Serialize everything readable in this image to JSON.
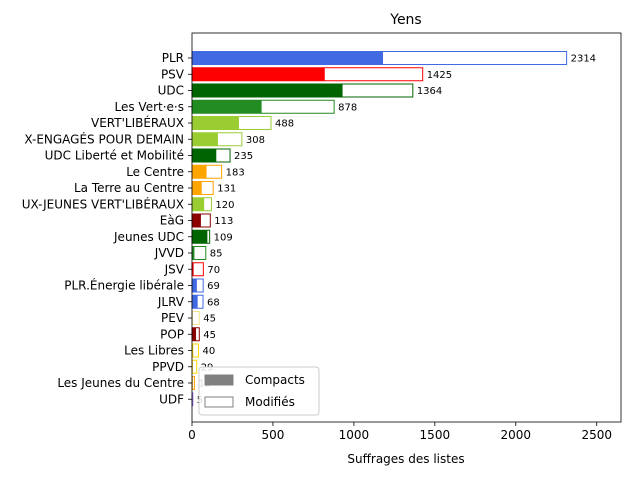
{
  "chart_data": {
    "type": "bar",
    "orientation": "horizontal",
    "title": "Yens",
    "xlabel": "Suffrages des listes",
    "ylabel": "",
    "xlim": [
      0,
      2650
    ],
    "xticks": [
      0,
      500,
      1000,
      1500,
      2000,
      2500
    ],
    "grid": false,
    "legend_position": "lower-left",
    "legend": [
      {
        "label": "Compacts",
        "style": "filled",
        "color": "#808080"
      },
      {
        "label": "Modifiés",
        "style": "outline",
        "color": "#808080"
      }
    ],
    "categories": [
      {
        "name": "PLR",
        "total": 2314,
        "compacts": 1180,
        "color": "#4169e1"
      },
      {
        "name": "PSV",
        "total": 1425,
        "compacts": 820,
        "color": "#ff0000"
      },
      {
        "name": "UDC",
        "total": 1364,
        "compacts": 930,
        "color": "#006400"
      },
      {
        "name": "Les Vert·e·s",
        "total": 878,
        "compacts": 430,
        "color": "#228b22"
      },
      {
        "name": "VERT'LIBÉRAUX",
        "total": 488,
        "compacts": 290,
        "color": "#9acd32"
      },
      {
        "name": "X-ENGAGÉS POUR DEMAIN",
        "total": 308,
        "compacts": 160,
        "color": "#9acd32"
      },
      {
        "name": "UDC Liberté et Mobilité",
        "total": 235,
        "compacts": 150,
        "color": "#006400"
      },
      {
        "name": "Le Centre",
        "total": 183,
        "compacts": 90,
        "color": "#ffa500"
      },
      {
        "name": "La Terre au Centre",
        "total": 131,
        "compacts": 60,
        "color": "#ffa500"
      },
      {
        "name": "UX-JEUNES VERT'LIBÉRAUX",
        "total": 120,
        "compacts": 75,
        "color": "#9acd32"
      },
      {
        "name": "EàG",
        "total": 113,
        "compacts": 55,
        "color": "#8b0000"
      },
      {
        "name": "Jeunes UDC",
        "total": 109,
        "compacts": 95,
        "color": "#006400"
      },
      {
        "name": "JVVD",
        "total": 85,
        "compacts": 15,
        "color": "#228b22"
      },
      {
        "name": "JSV",
        "total": 70,
        "compacts": 10,
        "color": "#ff0000"
      },
      {
        "name": "PLR.Énergie libérale",
        "total": 69,
        "compacts": 30,
        "color": "#4169e1"
      },
      {
        "name": "JLRV",
        "total": 68,
        "compacts": 35,
        "color": "#4169e1"
      },
      {
        "name": "PEV",
        "total": 45,
        "compacts": 5,
        "color": "#f0e68c"
      },
      {
        "name": "POP",
        "total": 45,
        "compacts": 25,
        "color": "#8b0000"
      },
      {
        "name": "Les Libres",
        "total": 40,
        "compacts": 8,
        "color": "#ffd700"
      },
      {
        "name": "PPVD",
        "total": 29,
        "compacts": 5,
        "color": "#ffd700"
      },
      {
        "name": "Les Jeunes du Centre",
        "total": 15,
        "compacts": 5,
        "color": "#ffa500"
      },
      {
        "name": "UDF",
        "total": 5,
        "compacts": 2,
        "color": "#9370db"
      }
    ]
  }
}
